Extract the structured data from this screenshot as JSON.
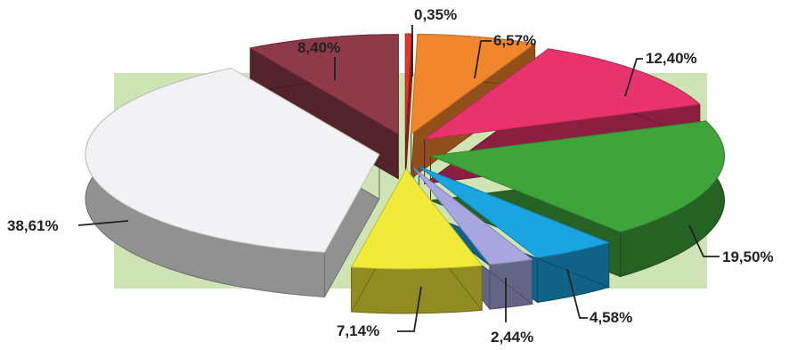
{
  "chart_data": {
    "type": "pie",
    "style": "3d-exploded",
    "background": "#cfe4b4",
    "slices": [
      {
        "label": "0,35%",
        "value": 0.35,
        "color": "#e8322c"
      },
      {
        "label": "6,57%",
        "value": 6.57,
        "color": "#f2862c"
      },
      {
        "label": "12,40%",
        "value": 12.4,
        "color": "#e8336e"
      },
      {
        "label": "19,50%",
        "value": 19.5,
        "color": "#3fa43a"
      },
      {
        "label": "4,58%",
        "value": 4.58,
        "color": "#1aa4e0"
      },
      {
        "label": "2,44%",
        "value": 2.44,
        "color": "#a7a6e0"
      },
      {
        "label": "7,14%",
        "value": 7.14,
        "color": "#f2ea38"
      },
      {
        "label": "38,61%",
        "value": 38.61,
        "color": "#f2f2f4"
      },
      {
        "label": "8,40%",
        "value": 8.4,
        "color": "#8e3a48"
      }
    ]
  }
}
